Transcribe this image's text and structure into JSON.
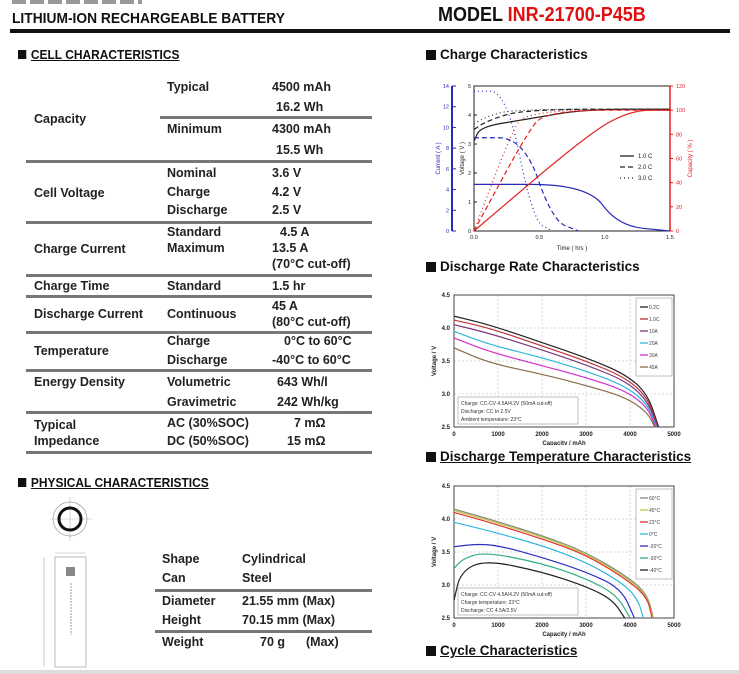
{
  "header": {
    "title": "LITHIUM-ION RECHARGEABLE BATTERY",
    "model_prefix": "MODEL",
    "model_name": "INR-21700-P45B",
    "accent_color": "#e01010"
  },
  "cell": {
    "section_title": "CELL CHARACTERISTICS",
    "rows": [
      {
        "label": "Capacity",
        "sub": [
          "Typical",
          "Minimum"
        ],
        "values": [
          "4500 mAh",
          "16.2 Wh",
          "4300 mAh",
          "15.5 Wh"
        ]
      },
      {
        "label": "Cell Voltage",
        "sub": [
          "Nominal",
          "Charge",
          "Discharge"
        ],
        "values": [
          "3.6 V",
          "4.2 V",
          "2.5 V"
        ]
      },
      {
        "label": "Charge Current",
        "sub": [
          "Standard",
          "Maximum"
        ],
        "values": [
          "4.5 A",
          "13.5 A",
          "(70°C cut-off)"
        ]
      },
      {
        "label": "Charge Time",
        "sub": [
          "Standard"
        ],
        "values": [
          "1.5 hr"
        ]
      },
      {
        "label": "Discharge Current",
        "sub": [
          "Continuous"
        ],
        "values": [
          "45 A",
          "(80°C cut-off)"
        ]
      },
      {
        "label": "Temperature",
        "sub": [
          "Charge",
          "Discharge"
        ],
        "values": [
          "0°C to 60°C",
          "-40°C to 60°C"
        ]
      },
      {
        "label": "Energy Density",
        "sub": [
          "Volumetric",
          "Gravimetric"
        ],
        "values": [
          "643 Wh/l",
          "242 Wh/kg"
        ]
      },
      {
        "label": [
          "Typical",
          "Impedance"
        ],
        "sub": [
          "AC (30%SOC)",
          "DC (50%SOC)"
        ],
        "values": [
          "7 mΩ",
          "15 mΩ"
        ]
      }
    ]
  },
  "physical": {
    "section_title": "PHYSICAL CHARACTERISTICS",
    "rows": [
      {
        "label": "Shape",
        "value": "Cylindrical"
      },
      {
        "label": "Can",
        "value": "Steel"
      },
      {
        "label": "Diameter",
        "value": "21.55 mm (Max)"
      },
      {
        "label": "Height",
        "value": "70.15 mm (Max)"
      },
      {
        "label": "Weight",
        "value": "70 g",
        "suffix": "(Max)"
      }
    ]
  },
  "right_sections": {
    "charge": "Charge Characteristics",
    "discharge_rate": "Discharge Rate Characteristics",
    "discharge_temp": "Discharge Temperature Characteristics",
    "cycle": "Cycle Characteristics"
  },
  "chart_data": [
    {
      "type": "line",
      "title": "Charge Characteristics",
      "xlabel": "Time ( hrs )",
      "ylabel_left_outer": "Current ( A )",
      "ylabel_left_inner": "Voltage ( V )",
      "ylabel_right": "Capacity ( % )",
      "xlim": [
        0,
        1.5
      ],
      "x_ticks": [
        "0.0",
        "0.5",
        "1.0",
        "1.5"
      ],
      "current_ticks": [
        "0",
        "2",
        "4",
        "6",
        "8",
        "10",
        "12",
        "14"
      ],
      "voltage_ticks": [
        "0",
        "1",
        "2",
        "3",
        "4",
        "5"
      ],
      "capacity_ticks": [
        "0",
        "20",
        "40",
        "60",
        "80",
        "100",
        "120"
      ],
      "legend": [
        "1.0 C",
        "2.0 C",
        "3.0 C"
      ],
      "series": [
        {
          "name": "1.0 C voltage",
          "x": [
            0,
            0.05,
            0.4,
            0.85,
            1.5
          ],
          "y": [
            3.1,
            3.6,
            3.85,
            4.2,
            4.2
          ]
        },
        {
          "name": "2.0 C voltage",
          "x": [
            0,
            0.1,
            0.38,
            1.5
          ],
          "y": [
            3.5,
            3.8,
            4.2,
            4.2
          ]
        },
        {
          "name": "3.0 C voltage",
          "x": [
            0,
            0.1,
            0.3,
            1.5
          ],
          "y": [
            3.7,
            3.95,
            4.2,
            4.2
          ]
        },
        {
          "name": "1.0 C current",
          "x": [
            0,
            0.87,
            1.1,
            1.5
          ],
          "y": [
            4.5,
            4.5,
            0.5,
            0
          ]
        },
        {
          "name": "2.0 C current",
          "x": [
            0,
            0.38,
            0.6,
            0.8
          ],
          "y": [
            9,
            9,
            1,
            0
          ]
        },
        {
          "name": "3.0 C current",
          "x": [
            0,
            0.25,
            0.45,
            0.6
          ],
          "y": [
            13.5,
            13.5,
            1,
            0
          ]
        },
        {
          "name": "1.0 C capacity",
          "x": [
            0,
            0.87,
            1.2,
            1.5
          ],
          "y": [
            0,
            80,
            100,
            100
          ]
        },
        {
          "name": "2.0 C capacity",
          "x": [
            0,
            0.4,
            0.55,
            1.5
          ],
          "y": [
            0,
            80,
            100,
            100
          ]
        },
        {
          "name": "3.0 C capacity",
          "x": [
            0,
            0.28,
            0.4,
            1.5
          ],
          "y": [
            0,
            80,
            100,
            100
          ]
        }
      ]
    },
    {
      "type": "line",
      "title": "Discharge Rate Characteristics",
      "xlabel": "Capacity / mAh",
      "ylabel": "Voltage / V",
      "xlim": [
        0,
        5000
      ],
      "ylim": [
        2.5,
        4.5
      ],
      "x_ticks": [
        "0",
        "1000",
        "2000",
        "3000",
        "4000",
        "5000"
      ],
      "y_ticks": [
        "2.5",
        "3.0",
        "3.5",
        "4.0",
        "4.5"
      ],
      "annotation": [
        "Charge: CC-CV 4.5A/4.2V (50mA cut-off)",
        "Discharge: CC to 2.5V",
        "Ambient temperature: 23°C"
      ],
      "series": [
        {
          "name": "0.2C",
          "color": "#222222",
          "x": [
            0,
            800,
            2000,
            3000,
            3900,
            4400,
            4650
          ],
          "y": [
            4.18,
            4.05,
            3.78,
            3.55,
            3.3,
            3.0,
            2.5
          ]
        },
        {
          "name": "1.0C",
          "color": "#c0303a",
          "x": [
            0,
            800,
            2000,
            3000,
            3900,
            4400,
            4630
          ],
          "y": [
            4.12,
            4.0,
            3.73,
            3.5,
            3.25,
            2.95,
            2.5
          ]
        },
        {
          "name": "10A",
          "color": "#7a3a78",
          "x": [
            0,
            800,
            2000,
            3000,
            3900,
            4400,
            4610
          ],
          "y": [
            4.05,
            3.92,
            3.67,
            3.44,
            3.2,
            2.9,
            2.5
          ]
        },
        {
          "name": "20A",
          "color": "#30b8d8",
          "x": [
            0,
            800,
            2000,
            3000,
            3900,
            4400,
            4600
          ],
          "y": [
            3.95,
            3.75,
            3.55,
            3.35,
            3.12,
            2.85,
            2.5
          ]
        },
        {
          "name": "30A",
          "color": "#d030c8",
          "x": [
            0,
            800,
            2000,
            3000,
            3900,
            4400,
            4580
          ],
          "y": [
            3.85,
            3.64,
            3.43,
            3.25,
            3.05,
            2.8,
            2.5
          ]
        },
        {
          "name": "45A",
          "color": "#8a6a4a",
          "x": [
            0,
            800,
            2000,
            3000,
            3900,
            4400,
            4560
          ],
          "y": [
            3.7,
            3.47,
            3.3,
            3.13,
            2.95,
            2.72,
            2.5
          ]
        }
      ]
    },
    {
      "type": "line",
      "title": "Discharge Temperature Characteristics",
      "xlabel": "Capacity / mAh",
      "ylabel": "Voltage / V",
      "xlim": [
        0,
        5000
      ],
      "ylim": [
        2.5,
        4.5
      ],
      "x_ticks": [
        "0",
        "1000",
        "2000",
        "3000",
        "4000",
        "5000"
      ],
      "y_ticks": [
        "2.5",
        "3.0",
        "3.5",
        "4.0",
        "4.5"
      ],
      "annotation": [
        "Charge: CC-CV 4.5A/4.2V (50mA cut-off)",
        "Charge temperature: 23°C",
        "Discharge: CC 4.5A/2.5V"
      ],
      "series": [
        {
          "name": "60°C",
          "color": "#888888",
          "x": [
            0,
            800,
            2000,
            3000,
            4000,
            4400,
            4530
          ],
          "y": [
            4.15,
            4.0,
            3.75,
            3.5,
            3.1,
            2.85,
            2.5
          ]
        },
        {
          "name": "45°C",
          "color": "#b8c840",
          "x": [
            0,
            800,
            2000,
            3000,
            4000,
            4400,
            4520
          ],
          "y": [
            4.13,
            3.98,
            3.73,
            3.48,
            3.08,
            2.82,
            2.5
          ]
        },
        {
          "name": "23°C",
          "color": "#e03030",
          "x": [
            0,
            800,
            2000,
            3000,
            4000,
            4400,
            4500
          ],
          "y": [
            4.1,
            3.95,
            3.7,
            3.46,
            3.05,
            2.8,
            2.5
          ]
        },
        {
          "name": "0°C",
          "color": "#30b8e0",
          "x": [
            0,
            800,
            2000,
            3000,
            3900,
            4200,
            4300
          ],
          "y": [
            3.95,
            3.82,
            3.6,
            3.35,
            3.0,
            2.75,
            2.5
          ]
        },
        {
          "name": "-20°C",
          "color": "#3030c0",
          "x": [
            0,
            500,
            1000,
            2000,
            3000,
            3800,
            4100
          ],
          "y": [
            3.58,
            3.62,
            3.6,
            3.42,
            3.2,
            2.95,
            2.5
          ]
        },
        {
          "name": "-30°C",
          "color": "#30b080",
          "x": [
            0,
            200,
            700,
            2000,
            3000,
            3700,
            4000
          ],
          "y": [
            3.25,
            3.4,
            3.5,
            3.33,
            3.1,
            2.85,
            2.5
          ]
        },
        {
          "name": "-40°C",
          "color": "#222222",
          "x": [
            0,
            150,
            700,
            2000,
            3000,
            3600,
            3880
          ],
          "y": [
            2.77,
            3.2,
            3.38,
            3.2,
            2.98,
            2.78,
            2.5
          ]
        }
      ]
    }
  ]
}
